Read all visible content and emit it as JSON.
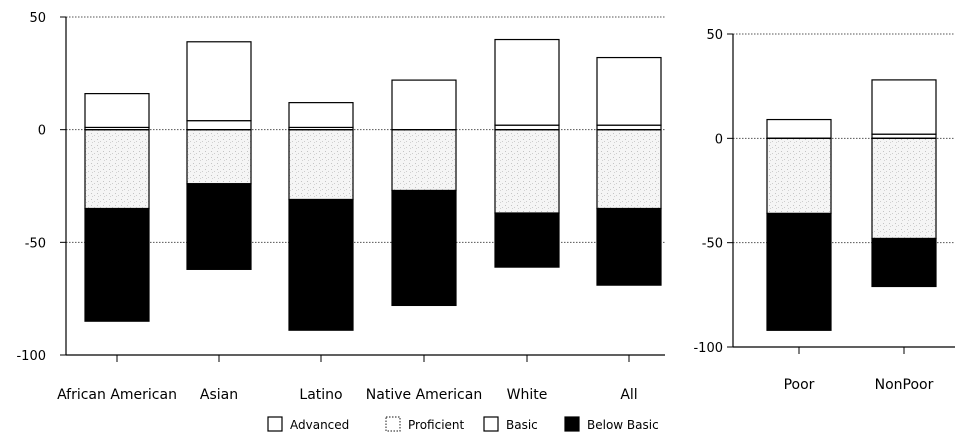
{
  "chart_data": [
    {
      "type": "bar",
      "stacked": true,
      "diverging": true,
      "ylim": [
        -100,
        50
      ],
      "yticks": [
        -100,
        -50,
        0,
        50
      ],
      "categories": [
        "African American",
        "Asian",
        "Latino",
        "Native American",
        "White",
        "All"
      ],
      "series": [
        {
          "name": "Advanced",
          "values": [
            1,
            4,
            1,
            0,
            2,
            2
          ]
        },
        {
          "name": "Proficient",
          "values": [
            15,
            35,
            11,
            22,
            38,
            30
          ]
        },
        {
          "name": "Basic",
          "values": [
            -35,
            -24,
            -31,
            -27,
            -37,
            -35
          ]
        },
        {
          "name": "Below Basic",
          "values": [
            -50,
            -38,
            -58,
            -51,
            -24,
            -34
          ]
        }
      ],
      "grid": true,
      "legend": "bottom"
    },
    {
      "type": "bar",
      "stacked": true,
      "diverging": true,
      "ylim": [
        -100,
        50
      ],
      "yticks": [
        -100,
        -50,
        0,
        50
      ],
      "categories": [
        "Poor",
        "NonPoor"
      ],
      "series": [
        {
          "name": "Advanced",
          "values": [
            0,
            2
          ]
        },
        {
          "name": "Proficient",
          "values": [
            9,
            26
          ]
        },
        {
          "name": "Basic",
          "values": [
            -36,
            -48
          ]
        },
        {
          "name": "Below Basic",
          "values": [
            -56,
            -23
          ]
        }
      ],
      "grid": true,
      "legend": "bottom"
    }
  ],
  "legend": {
    "items": [
      {
        "label": "Advanced",
        "style": "white"
      },
      {
        "label": "Proficient",
        "style": "dotted"
      },
      {
        "label": "Basic",
        "style": "white"
      },
      {
        "label": "Below Basic",
        "style": "black"
      }
    ]
  },
  "colors": {
    "below_basic": "#000000",
    "basic": "#f4f4f4",
    "proficient": "#ffffff",
    "advanced": "#ffffff"
  }
}
